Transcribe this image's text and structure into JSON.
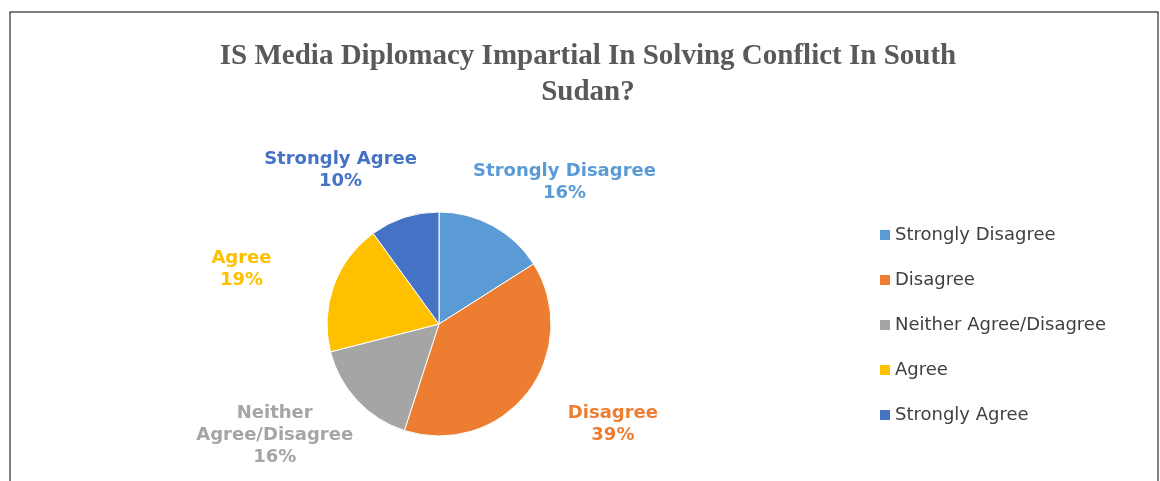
{
  "chart_data": {
    "type": "pie",
    "title": "IS Media Diplomacy Impartial In Solving Conflict In South Sudan?",
    "categories": [
      "Strongly Disagree",
      "Disagree",
      "Neither Agree/Disagree",
      "Agree",
      "Strongly Agree"
    ],
    "values": [
      16,
      39,
      16,
      19,
      10
    ],
    "colors": [
      "#5b9bd5",
      "#ed7d31",
      "#a5a5a5",
      "#ffc000",
      "#4472c4"
    ],
    "value_labels": [
      "16%",
      "39%",
      "16%",
      "19%",
      "10%"
    ],
    "legend": "right"
  }
}
